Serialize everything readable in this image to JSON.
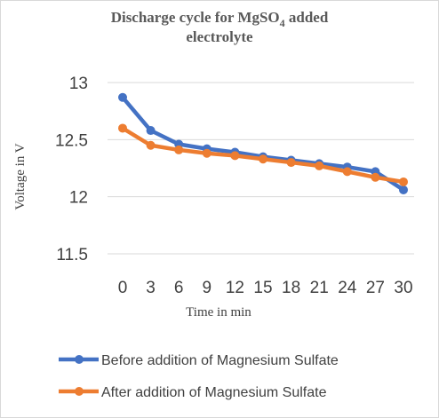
{
  "chart_data": {
    "type": "line",
    "title_main": "Discharge cycle for MgSO",
    "title_sub": "4",
    "title_tail": " added",
    "title_line2": "electrolyte",
    "xlabel": "Time in min",
    "ylabel": "Voltage in V",
    "x": [
      0,
      3,
      6,
      9,
      12,
      15,
      18,
      21,
      24,
      27,
      30
    ],
    "x_tick_labels": [
      "0",
      "3",
      "6",
      "9",
      "12",
      "15",
      "18",
      "21",
      "24",
      "27",
      "30"
    ],
    "y_tick_labels": [
      "11.5",
      "12",
      "12.5",
      "13"
    ],
    "ylim": [
      11.5,
      13
    ],
    "y_ticks": [
      11.5,
      12,
      12.5,
      13
    ],
    "grid": "horizontal",
    "legend_position": "bottom",
    "series": [
      {
        "name": "Before addition of Magnesium Sulfate",
        "color": "#4472c4",
        "values": [
          12.87,
          12.58,
          12.46,
          12.42,
          12.39,
          12.35,
          12.32,
          12.29,
          12.26,
          12.22,
          12.06
        ]
      },
      {
        "name": "After addition of Magnesium Sulfate",
        "color": "#ed7d31",
        "values": [
          12.6,
          12.45,
          12.41,
          12.38,
          12.36,
          12.33,
          12.3,
          12.27,
          12.22,
          12.17,
          12.13
        ]
      }
    ]
  }
}
